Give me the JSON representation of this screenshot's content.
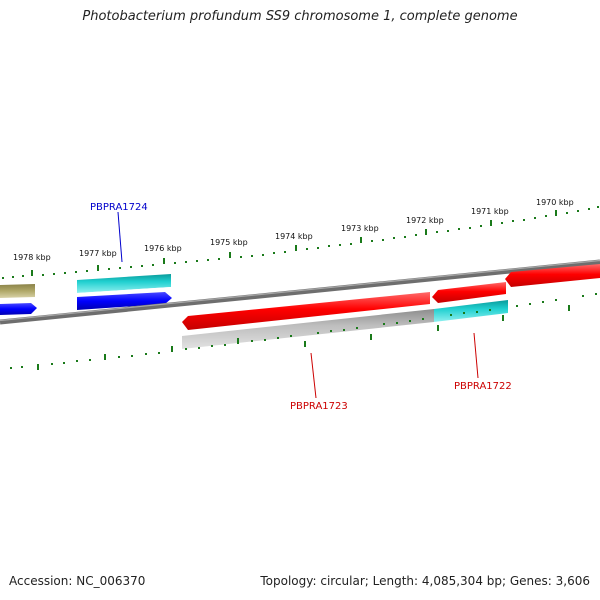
{
  "title": "Photobacterium profundum SS9 chromosome 1, complete genome",
  "footer": {
    "accession": "Accession: NC_006370",
    "summary": "Topology: circular; Length: 4,085,304 bp; Genes: 3,606"
  },
  "scale": {
    "labels": [
      "1978 kbp",
      "1977 kbp",
      "1976 kbp",
      "1975 kbp",
      "1974 kbp",
      "1973 kbp",
      "1972 kbp",
      "1971 kbp",
      "1970 kbp"
    ]
  },
  "gene_labels": [
    {
      "id": "PBPRA1724",
      "color": "#0000cc"
    },
    {
      "id": "PBPRA1723",
      "color": "#cc0000"
    },
    {
      "id": "PBPRA1722",
      "color": "#cc0000"
    }
  ],
  "colors": {
    "backbone": "#808080",
    "ticks": "#1a7a1a",
    "forward_gene": "#ff0000",
    "reverse_gene": "#0000ff",
    "cyan_feature": "#1ec8c8",
    "gray_feature": "#b8b8b8",
    "olive_feature": "#a8a060"
  }
}
